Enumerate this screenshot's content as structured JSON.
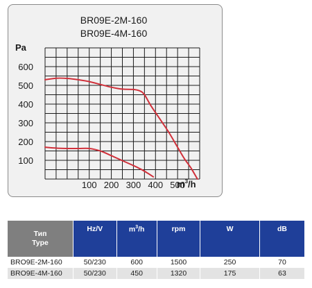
{
  "chart_data": {
    "type": "line",
    "title_lines": [
      "BR09E-2M-160",
      "BR09E-4M-160"
    ],
    "ylabel": "Pa",
    "xlabel_base": "m",
    "xlabel_exp": "3",
    "xlabel_tail": "/h",
    "xlim": [
      -100,
      600
    ],
    "ylim": [
      0,
      700
    ],
    "x_ticks": [
      100,
      200,
      300,
      400,
      500
    ],
    "y_ticks": [
      100,
      200,
      300,
      400,
      500,
      600
    ],
    "grid": true,
    "line_color": "#d0303a",
    "series": [
      {
        "x": [
          -100,
          -50,
          0,
          50,
          100,
          150,
          200,
          250,
          300,
          330,
          350,
          380,
          420,
          460,
          500,
          530,
          560,
          590
        ],
        "y": [
          530,
          538,
          537,
          530,
          520,
          505,
          490,
          480,
          478,
          470,
          450,
          390,
          320,
          250,
          170,
          110,
          60,
          0
        ]
      },
      {
        "x": [
          -100,
          -50,
          0,
          50,
          100,
          150,
          200,
          250,
          300,
          330,
          360,
          390
        ],
        "y": [
          170,
          165,
          163,
          163,
          163,
          150,
          125,
          98,
          72,
          55,
          35,
          12
        ]
      }
    ]
  },
  "table": {
    "header_type_ru": "Тип",
    "header_type_en": "Type",
    "header_hz": "Hz/V",
    "header_flow_base": "m",
    "header_flow_exp": "3",
    "header_flow_tail": "/h",
    "header_rpm": "rpm",
    "header_w": "W",
    "header_db": "dB",
    "rows": [
      {
        "name": "BRO9E-2M-160",
        "hz": "50/230",
        "flow": "600",
        "rpm": "1500",
        "w": "250",
        "db": "70"
      },
      {
        "name": "BRO9E-4M-160",
        "hz": "50/230",
        "flow": "450",
        "rpm": "1320",
        "w": "175",
        "db": "63"
      }
    ]
  },
  "colors": {
    "header_blue": "#1f3f99",
    "header_gray": "#7f7f7f",
    "row_alt": "#e3e3e3"
  }
}
